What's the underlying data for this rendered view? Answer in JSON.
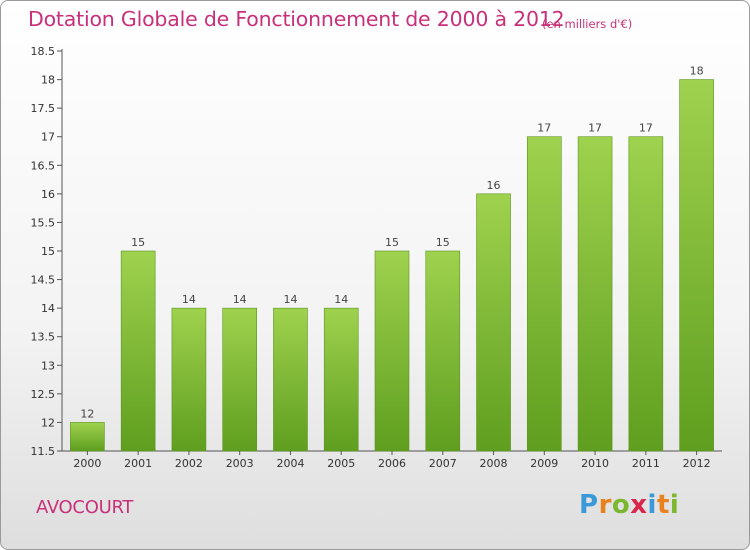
{
  "header": {
    "title": "Dotation Globale de Fonctionnement de 2000 à 2012",
    "subtitle": "(en milliers d'€)"
  },
  "footer": {
    "commune": "AVOCOURT",
    "logo": {
      "letters": [
        "P",
        "r",
        "o",
        "x",
        "i",
        "t",
        "i"
      ],
      "colors": [
        "#3a9ad9",
        "#e8821e",
        "#7cb82f",
        "#d9264a",
        "#3a9ad9",
        "#e8821e",
        "#7cb82f"
      ]
    }
  },
  "colors": {
    "bar_top": "#9fd24e",
    "bar_bottom": "#5f9e1f",
    "bar_stroke": "#5a9420",
    "title": "#c8317a"
  },
  "chart_data": {
    "type": "bar",
    "categories": [
      "2000",
      "2001",
      "2002",
      "2003",
      "2004",
      "2005",
      "2006",
      "2007",
      "2008",
      "2009",
      "2010",
      "2011",
      "2012"
    ],
    "values": [
      12,
      15,
      14,
      14,
      14,
      14,
      15,
      15,
      16,
      17,
      17,
      17,
      18
    ],
    "data_labels": [
      "12",
      "15",
      "14",
      "14",
      "14",
      "14",
      "15",
      "15",
      "16",
      "17",
      "17",
      "17",
      "18"
    ],
    "yticks": [
      "11.5",
      "12",
      "12.5",
      "13",
      "13.5",
      "14",
      "14.5",
      "15",
      "15.5",
      "16",
      "16.5",
      "17",
      "17.5",
      "18",
      "18.5"
    ],
    "ylim": [
      11.5,
      18.5
    ],
    "grid": false,
    "legend": "none"
  }
}
